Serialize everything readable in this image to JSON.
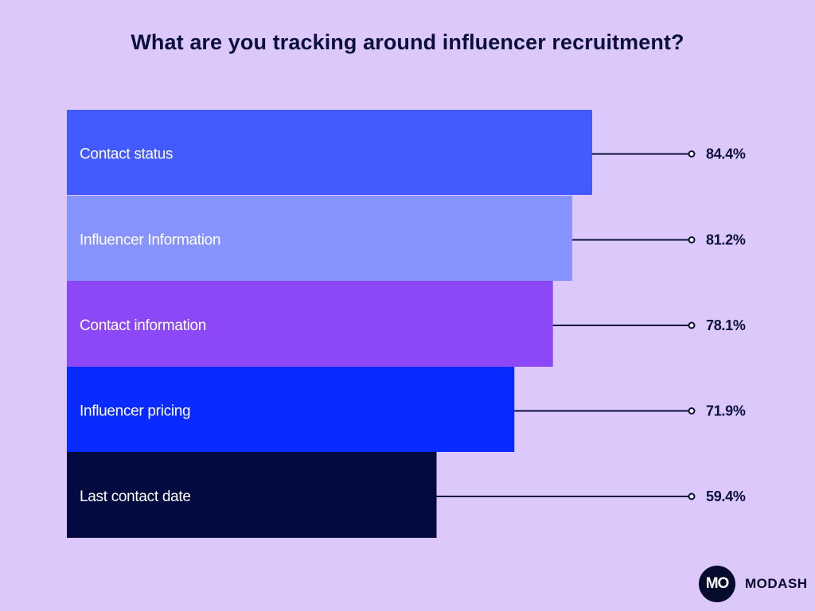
{
  "chart_data": {
    "type": "bar",
    "orientation": "horizontal",
    "title": "What are you tracking around influencer recruitment?",
    "categories": [
      "Contact status",
      "Influencer Information",
      "Contact information",
      "Influencer pricing",
      "Last contact date"
    ],
    "values": [
      84.4,
      81.2,
      78.1,
      71.9,
      59.4
    ],
    "value_labels": [
      "84.4%",
      "81.2%",
      "78.1%",
      "71.9%",
      "59.4%"
    ],
    "unit": "%",
    "xlim": [
      0,
      100
    ],
    "grid": false,
    "legend": "none",
    "bar_colors": [
      "#425afe",
      "#8794ff",
      "#8c48f6",
      "#0a2bff",
      "#030a40"
    ],
    "leader_color": "#0b0f3d"
  },
  "background_color": "#dcc8fb",
  "logo": {
    "mark": "MO",
    "text": "MODASH",
    "icon": "modash-logo-icon"
  }
}
